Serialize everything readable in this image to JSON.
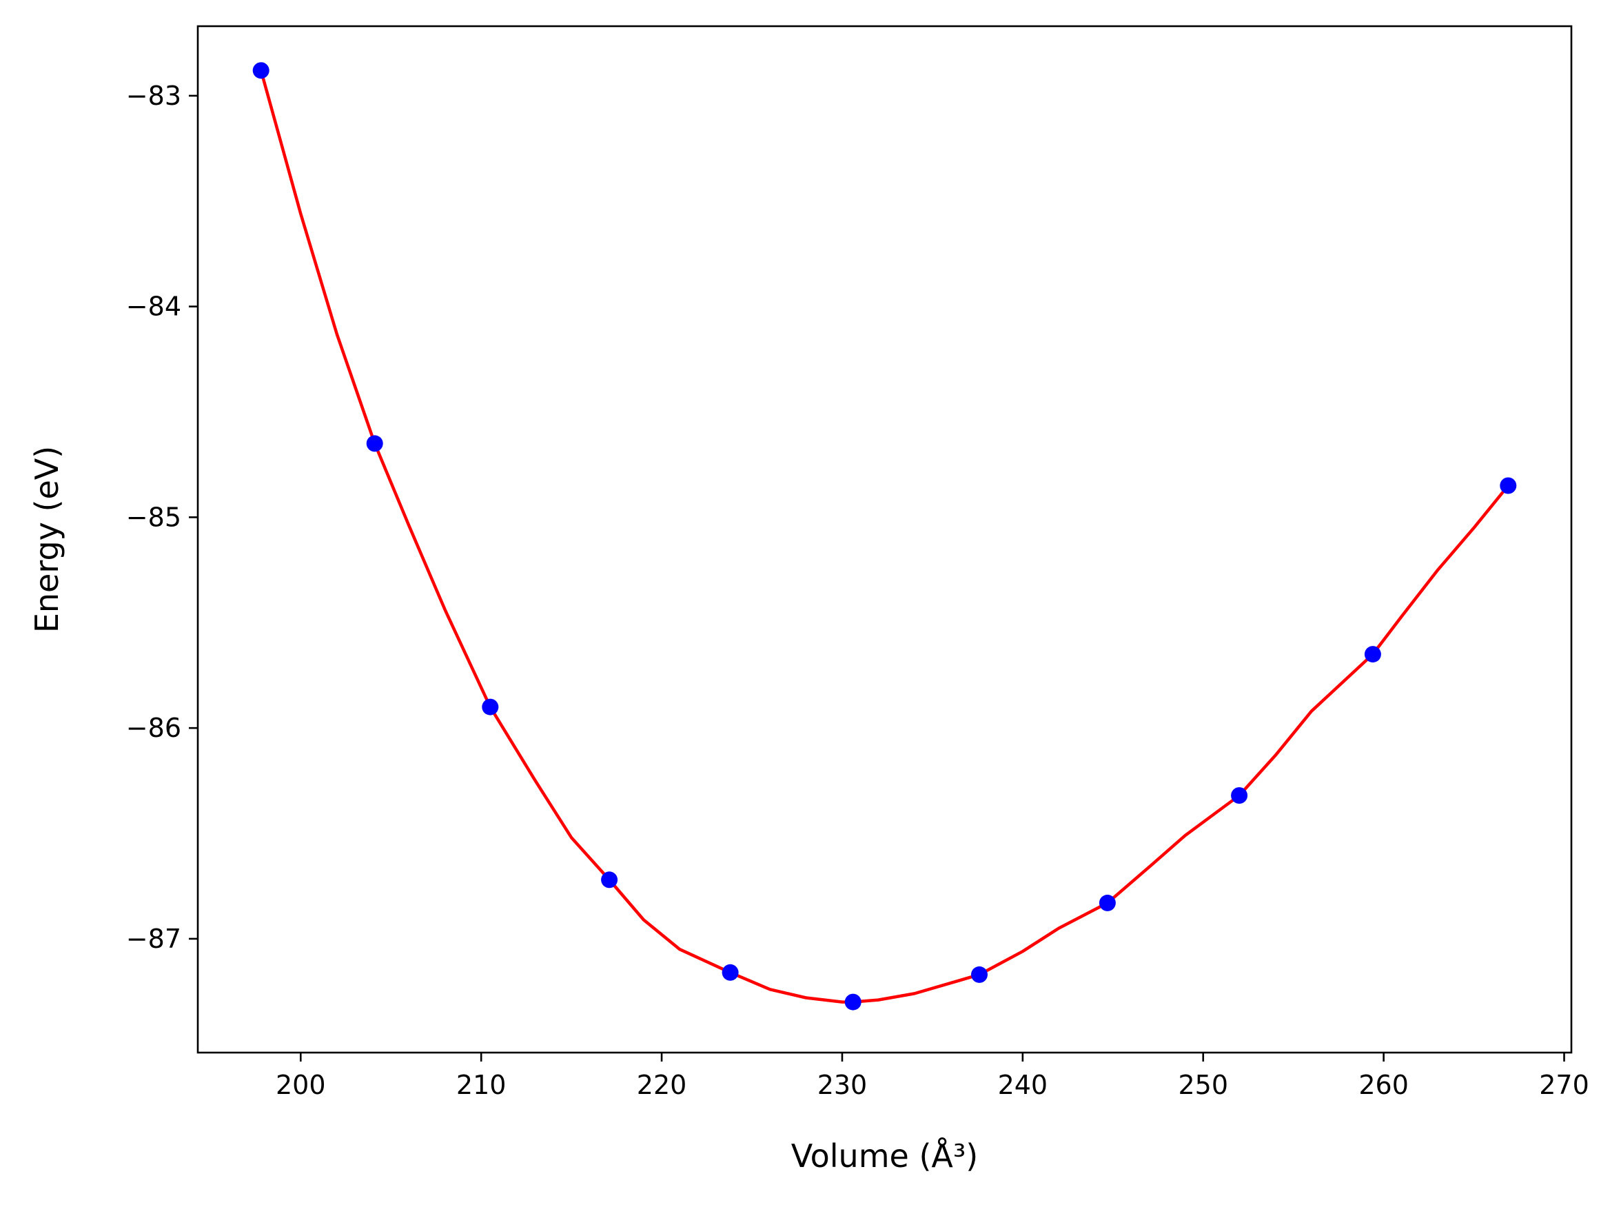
{
  "chart_data": {
    "type": "scatter",
    "title": "",
    "xlabel": "Volume (Å³)",
    "ylabel": "Energy (eV)",
    "xlim": [
      194.3,
      270.4
    ],
    "ylim": [
      -87.54,
      -82.67
    ],
    "xticks": [
      200,
      210,
      220,
      230,
      240,
      250,
      260,
      270
    ],
    "yticks": [
      -83,
      -84,
      -85,
      -86,
      -87
    ],
    "xtick_labels": [
      "200",
      "210",
      "220",
      "230",
      "240",
      "250",
      "260",
      "270"
    ],
    "ytick_labels": [
      "−83",
      "−84",
      "−85",
      "−86",
      "−87"
    ],
    "grid": false,
    "legend": null,
    "series": [
      {
        "kind": "points",
        "color": "#0000ff",
        "x": [
          197.8,
          204.1,
          210.5,
          217.1,
          223.8,
          230.6,
          237.6,
          244.7,
          252.0,
          259.4,
          266.9
        ],
        "y": [
          -82.88,
          -84.65,
          -85.9,
          -86.72,
          -87.16,
          -87.3,
          -87.17,
          -86.83,
          -86.32,
          -85.65,
          -84.85
        ]
      },
      {
        "kind": "fit-curve",
        "color": "#ff0000",
        "x": [
          197.8,
          200.0,
          202.0,
          204.1,
          206.0,
          208.0,
          210.5,
          213.0,
          215.0,
          217.1,
          219.0,
          221.0,
          223.8,
          226.0,
          228.0,
          230.0,
          230.6,
          232.0,
          234.0,
          237.6,
          240.0,
          242.0,
          244.7,
          247.0,
          249.0,
          252.0,
          254.0,
          256.0,
          259.4,
          261.0,
          263.0,
          265.0,
          266.9
        ],
        "y": [
          -82.88,
          -83.56,
          -84.13,
          -84.65,
          -85.04,
          -85.44,
          -85.9,
          -86.25,
          -86.52,
          -86.72,
          -86.91,
          -87.05,
          -87.16,
          -87.24,
          -87.28,
          -87.3,
          -87.3,
          -87.29,
          -87.26,
          -87.17,
          -87.06,
          -86.95,
          -86.83,
          -86.66,
          -86.51,
          -86.32,
          -86.13,
          -85.92,
          -85.65,
          -85.47,
          -85.25,
          -85.05,
          -84.85
        ]
      }
    ]
  }
}
